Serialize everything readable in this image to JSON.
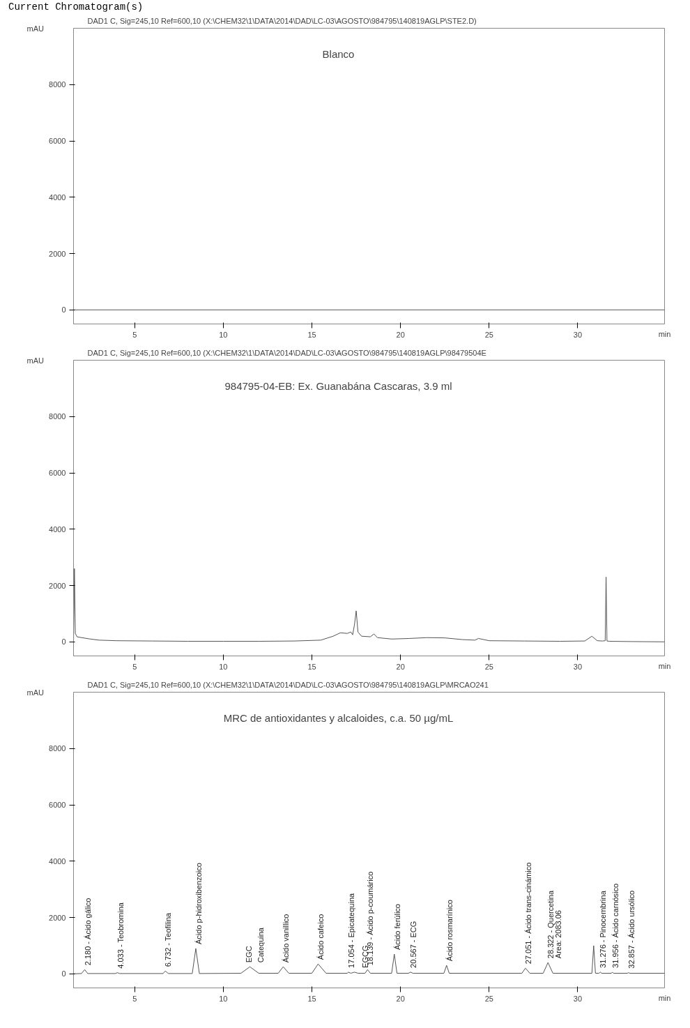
{
  "chart_data": [
    {
      "type": "line",
      "title": "DAD1 C, Sig=245,10 Ref=600,10 (X:\\CHEM32\\1\\DATA\\2014\\DAD\\LC-03\\AGOSTO\\984795\\140819AGLP\\STE2.D)",
      "subtitle": "Blanco",
      "annotations": [
        "Current Chromatogram(s)"
      ],
      "xlabel": "min",
      "ylabel": "mAU",
      "x": [
        1.55,
        34.9
      ],
      "series": [
        {
          "color": "#555555",
          "values": [
            0,
            0
          ]
        }
      ],
      "xlim": [
        1.55,
        34.9
      ],
      "ylim": [
        -500,
        10000
      ],
      "xticks": [
        5,
        10,
        15,
        20,
        25,
        30
      ],
      "yticks": [
        0,
        2000,
        4000,
        6000,
        8000
      ],
      "grid": false,
      "marker": "none",
      "line_style": "solid"
    },
    {
      "type": "line",
      "title": "DAD1 C, Sig=245,10 Ref=600,10 (X:\\CHEM32\\1\\DATA\\2014\\DAD\\LC-03\\AGOSTO\\984795\\140819AGLP\\98479504E",
      "subtitle": "984795-04-EB: Ex. Guanabána Cascaras, 3.9 ml",
      "xlabel": "min",
      "ylabel": "mAU",
      "x": [
        1.55,
        1.6,
        1.65,
        1.75,
        2.0,
        2.5,
        3.0,
        4,
        6,
        8,
        10,
        12,
        14,
        15.5,
        16.2,
        16.6,
        17.0,
        17.2,
        17.3,
        17.4,
        17.5,
        17.6,
        17.8,
        18.3,
        18.5,
        18.7,
        19.5,
        20.5,
        21.5,
        22.5,
        23.5,
        24.2,
        24.4,
        25,
        27,
        29,
        30.4,
        30.8,
        31.1,
        31.4,
        31.55,
        31.6,
        31.65,
        31.8,
        33,
        34.9
      ],
      "series": [
        {
          "color": "#555555",
          "values": [
            0,
            2600,
            300,
            180,
            150,
            100,
            60,
            40,
            30,
            20,
            20,
            20,
            30,
            60,
            200,
            320,
            300,
            350,
            250,
            600,
            1100,
            350,
            200,
            180,
            280,
            150,
            100,
            120,
            150,
            140,
            80,
            60,
            120,
            40,
            30,
            20,
            30,
            200,
            40,
            30,
            40,
            2300,
            30,
            20,
            10,
            0
          ]
        }
      ],
      "xlim": [
        1.55,
        34.9
      ],
      "ylim": [
        -500,
        10000
      ],
      "xticks": [
        5,
        10,
        15,
        20,
        25,
        30
      ],
      "yticks": [
        0,
        2000,
        4000,
        6000,
        8000
      ],
      "grid": false,
      "marker": "none",
      "line_style": "solid"
    },
    {
      "type": "line",
      "title": "DAD1 C, Sig=245,10 Ref=600,10 (X:\\CHEM32\\1\\DATA\\2014\\DAD\\LC-03\\AGOSTO\\984795\\140819AGLP\\MRCAO241",
      "subtitle": "MRC de antioxidantes y alcaloides, c.a. 50 µg/mL",
      "xlabel": "min",
      "ylabel": "mAU",
      "x": [
        1.55,
        2.0,
        2.18,
        2.35,
        3.9,
        4.03,
        4.15,
        6.6,
        6.73,
        6.9,
        8.25,
        8.45,
        8.65,
        11.0,
        11.5,
        12.0,
        13.1,
        13.38,
        13.7,
        15.0,
        15.35,
        15.8,
        17.0,
        17.054,
        17.2,
        17.401,
        17.6,
        18.0,
        18.139,
        18.3,
        19.5,
        19.65,
        19.8,
        20.45,
        20.567,
        20.7,
        22.45,
        22.6,
        22.75,
        26.85,
        27.051,
        27.3,
        28.05,
        28.322,
        28.6,
        30.8,
        30.9,
        31.0,
        31.2,
        31.276,
        31.35,
        31.9,
        31.956,
        32.02,
        32.8,
        32.857,
        32.95,
        34.9
      ],
      "series": [
        {
          "color": "#555555",
          "values": [
            0,
            10,
            150,
            10,
            10,
            40,
            10,
            10,
            100,
            10,
            10,
            900,
            10,
            20,
            250,
            20,
            20,
            250,
            20,
            20,
            350,
            20,
            20,
            60,
            20,
            60,
            20,
            20,
            150,
            20,
            20,
            700,
            20,
            20,
            60,
            20,
            20,
            300,
            20,
            20,
            200,
            20,
            20,
            400,
            20,
            20,
            1000,
            20,
            20,
            60,
            20,
            20,
            60,
            20,
            20,
            40,
            20,
            20
          ]
        }
      ],
      "annotations": [
        {
          "text": "2.180 - Ácido gálico",
          "x": 2.18,
          "y": 150
        },
        {
          "text": "4.033 - Teobromina",
          "x": 4.033,
          "y": 40
        },
        {
          "text": "6.732 - Teofilina",
          "x": 6.732,
          "y": 100
        },
        {
          "text": "Ácido p-hidroxibenzoico",
          "x": 8.45,
          "y": 900
        },
        {
          "text": "EGC",
          "x": 11.3,
          "y": 250
        },
        {
          "text": "Catequina",
          "x": 11.5,
          "y": 250
        },
        {
          "text": "Ácido vanillico",
          "x": 13.38,
          "y": 250
        },
        {
          "text": "Ácido cafeico",
          "x": 15.35,
          "y": 350
        },
        {
          "text": "17.054 - Epicatequina",
          "x": 17.054,
          "y": 60
        },
        {
          "text": "EGCG",
          "x": 17.401,
          "y": 60
        },
        {
          "text": "18.139 - Ácido p-coumárico",
          "x": 18.139,
          "y": 150
        },
        {
          "text": "Ácido ferúlico",
          "x": 19.65,
          "y": 700
        },
        {
          "text": "20.567 - ECG",
          "x": 20.567,
          "y": 60
        },
        {
          "text": "Ácido rosmarínico",
          "x": 22.6,
          "y": 300
        },
        {
          "text": "27.051 - Ácido trans-cinámico",
          "x": 27.051,
          "y": 200
        },
        {
          "text": "28.322 - Quercetina",
          "x": 28.322,
          "y": 400
        },
        {
          "text": "Area: 2083.06",
          "x": 28.322,
          "y": 400
        },
        {
          "text": "31.276 - Pinocembrina",
          "x": 31.276,
          "y": 60
        },
        {
          "text": "31.956 - Ácido carnósico",
          "x": 31.956,
          "y": 60
        },
        {
          "text": "32.857 - Ácido ursólico",
          "x": 32.857,
          "y": 40
        }
      ],
      "xlim": [
        1.55,
        34.9
      ],
      "ylim": [
        -500,
        10000
      ],
      "xticks": [
        5,
        10,
        15,
        20,
        25,
        30
      ],
      "yticks": [
        0,
        2000,
        4000,
        6000,
        8000
      ],
      "grid": false,
      "marker": "none",
      "line_style": "solid"
    }
  ]
}
